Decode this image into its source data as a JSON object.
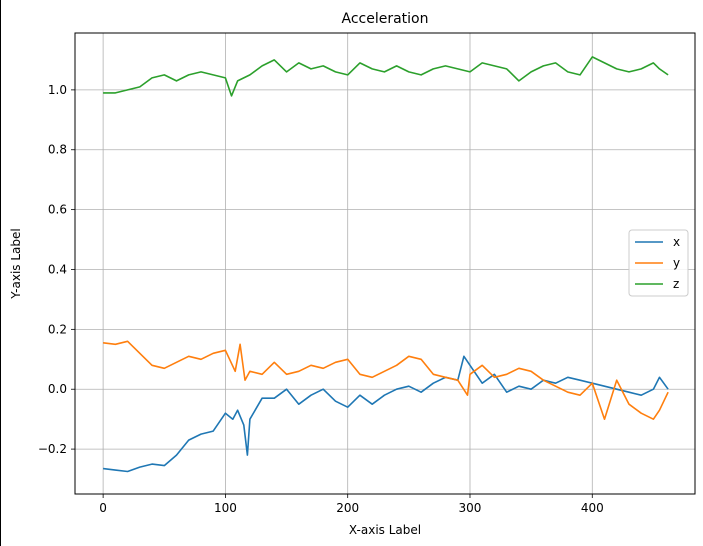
{
  "chart_data": {
    "type": "line",
    "title": "Acceleration",
    "xlabel": "X-axis Label",
    "ylabel": "Y-axis Label",
    "xlim": [
      -23,
      484
    ],
    "ylim": [
      -0.35,
      1.19
    ],
    "xticks": [
      0,
      100,
      200,
      300,
      400
    ],
    "yticks": [
      -0.2,
      0.0,
      0.2,
      0.4,
      0.6,
      0.8,
      1.0
    ],
    "ytick_labels": [
      "−0.2",
      "0.0",
      "0.2",
      "0.4",
      "0.6",
      "0.8",
      "1.0"
    ],
    "grid": true,
    "legend_position": "center-right",
    "series": [
      {
        "name": "x",
        "color": "#1f77b4",
        "points": [
          [
            0,
            -0.265
          ],
          [
            10,
            -0.27
          ],
          [
            20,
            -0.275
          ],
          [
            30,
            -0.26
          ],
          [
            40,
            -0.25
          ],
          [
            50,
            -0.255
          ],
          [
            60,
            -0.22
          ],
          [
            70,
            -0.17
          ],
          [
            80,
            -0.15
          ],
          [
            90,
            -0.14
          ],
          [
            100,
            -0.08
          ],
          [
            106,
            -0.1
          ],
          [
            110,
            -0.07
          ],
          [
            115,
            -0.12
          ],
          [
            118,
            -0.22
          ],
          [
            120,
            -0.1
          ],
          [
            130,
            -0.03
          ],
          [
            140,
            -0.03
          ],
          [
            150,
            0.0
          ],
          [
            160,
            -0.05
          ],
          [
            170,
            -0.02
          ],
          [
            180,
            0.0
          ],
          [
            190,
            -0.04
          ],
          [
            200,
            -0.06
          ],
          [
            210,
            -0.02
          ],
          [
            220,
            -0.05
          ],
          [
            230,
            -0.02
          ],
          [
            240,
            0.0
          ],
          [
            250,
            0.01
          ],
          [
            260,
            -0.01
          ],
          [
            270,
            0.02
          ],
          [
            280,
            0.04
          ],
          [
            290,
            0.03
          ],
          [
            295,
            0.11
          ],
          [
            300,
            0.08
          ],
          [
            310,
            0.02
          ],
          [
            320,
            0.05
          ],
          [
            330,
            -0.01
          ],
          [
            340,
            0.01
          ],
          [
            350,
            0.0
          ],
          [
            360,
            0.03
          ],
          [
            370,
            0.02
          ],
          [
            380,
            0.04
          ],
          [
            390,
            0.03
          ],
          [
            400,
            0.02
          ],
          [
            410,
            0.01
          ],
          [
            420,
            0.0
          ],
          [
            430,
            -0.01
          ],
          [
            440,
            -0.02
          ],
          [
            450,
            0.0
          ],
          [
            455,
            0.04
          ],
          [
            462,
            0.0
          ]
        ]
      },
      {
        "name": "y",
        "color": "#ff7f0e",
        "points": [
          [
            0,
            0.155
          ],
          [
            10,
            0.15
          ],
          [
            20,
            0.16
          ],
          [
            30,
            0.12
          ],
          [
            40,
            0.08
          ],
          [
            50,
            0.07
          ],
          [
            60,
            0.09
          ],
          [
            70,
            0.11
          ],
          [
            80,
            0.1
          ],
          [
            90,
            0.12
          ],
          [
            100,
            0.13
          ],
          [
            108,
            0.06
          ],
          [
            112,
            0.15
          ],
          [
            116,
            0.03
          ],
          [
            120,
            0.06
          ],
          [
            130,
            0.05
          ],
          [
            140,
            0.09
          ],
          [
            150,
            0.05
          ],
          [
            160,
            0.06
          ],
          [
            170,
            0.08
          ],
          [
            180,
            0.07
          ],
          [
            190,
            0.09
          ],
          [
            200,
            0.1
          ],
          [
            210,
            0.05
          ],
          [
            220,
            0.04
          ],
          [
            230,
            0.06
          ],
          [
            240,
            0.08
          ],
          [
            250,
            0.11
          ],
          [
            260,
            0.1
          ],
          [
            270,
            0.05
          ],
          [
            280,
            0.04
          ],
          [
            290,
            0.03
          ],
          [
            298,
            -0.02
          ],
          [
            300,
            0.05
          ],
          [
            310,
            0.08
          ],
          [
            320,
            0.04
          ],
          [
            330,
            0.05
          ],
          [
            340,
            0.07
          ],
          [
            350,
            0.06
          ],
          [
            360,
            0.03
          ],
          [
            370,
            0.01
          ],
          [
            380,
            -0.01
          ],
          [
            390,
            -0.02
          ],
          [
            400,
            0.02
          ],
          [
            410,
            -0.1
          ],
          [
            420,
            0.03
          ],
          [
            430,
            -0.05
          ],
          [
            440,
            -0.08
          ],
          [
            450,
            -0.1
          ],
          [
            455,
            -0.07
          ],
          [
            462,
            -0.01
          ]
        ]
      },
      {
        "name": "z",
        "color": "#2ca02c",
        "points": [
          [
            0,
            0.99
          ],
          [
            10,
            0.99
          ],
          [
            20,
            1.0
          ],
          [
            30,
            1.01
          ],
          [
            40,
            1.04
          ],
          [
            50,
            1.05
          ],
          [
            60,
            1.03
          ],
          [
            70,
            1.05
          ],
          [
            80,
            1.06
          ],
          [
            90,
            1.05
          ],
          [
            100,
            1.04
          ],
          [
            105,
            0.98
          ],
          [
            110,
            1.03
          ],
          [
            120,
            1.05
          ],
          [
            130,
            1.08
          ],
          [
            140,
            1.1
          ],
          [
            150,
            1.06
          ],
          [
            160,
            1.09
          ],
          [
            170,
            1.07
          ],
          [
            180,
            1.08
          ],
          [
            190,
            1.06
          ],
          [
            200,
            1.05
          ],
          [
            210,
            1.09
          ],
          [
            220,
            1.07
          ],
          [
            230,
            1.06
          ],
          [
            240,
            1.08
          ],
          [
            250,
            1.06
          ],
          [
            260,
            1.05
          ],
          [
            270,
            1.07
          ],
          [
            280,
            1.08
          ],
          [
            290,
            1.07
          ],
          [
            300,
            1.06
          ],
          [
            310,
            1.09
          ],
          [
            320,
            1.08
          ],
          [
            330,
            1.07
          ],
          [
            340,
            1.03
          ],
          [
            350,
            1.06
          ],
          [
            360,
            1.08
          ],
          [
            370,
            1.09
          ],
          [
            380,
            1.06
          ],
          [
            390,
            1.05
          ],
          [
            400,
            1.11
          ],
          [
            410,
            1.09
          ],
          [
            420,
            1.07
          ],
          [
            430,
            1.06
          ],
          [
            440,
            1.07
          ],
          [
            450,
            1.09
          ],
          [
            455,
            1.07
          ],
          [
            462,
            1.05
          ]
        ]
      }
    ]
  }
}
